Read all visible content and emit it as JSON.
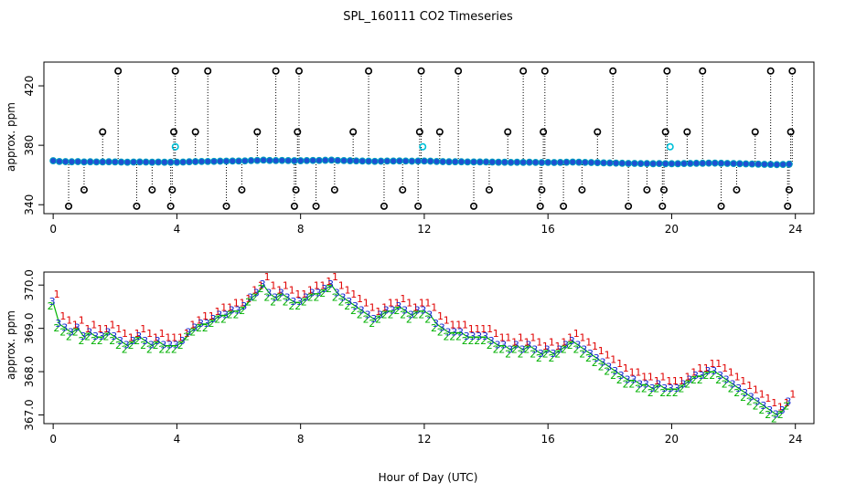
{
  "figure": {
    "title": "SPL_160111  CO2 Timeseries",
    "xlabel": "Hour of Day (UTC)"
  },
  "chart_data": [
    {
      "type": "scatter",
      "title": "SPL_160111  CO2 Timeseries",
      "xlabel": "",
      "ylabel": "approx. ppm",
      "xlim": [
        -0.3,
        24.6
      ],
      "ylim": [
        334,
        436
      ],
      "xticks": [
        0,
        4,
        8,
        12,
        16,
        20,
        24
      ],
      "yticks": [
        340,
        380,
        420
      ],
      "grid": false,
      "legend": "none",
      "colors": {
        "baseline": "#1e50d2",
        "outlier": "#000000",
        "flagged": "#00c0d8",
        "baseline_edge": "#00a0c0",
        "drop": "#000000"
      },
      "series": [
        {
          "x": [
            0.0,
            0.2,
            0.4,
            0.6,
            0.8,
            1.0,
            1.2,
            1.4,
            1.6,
            1.8,
            2.0,
            2.2,
            2.4,
            2.6,
            2.8,
            3.0,
            3.2,
            3.4,
            3.6,
            3.8,
            4.0,
            4.2,
            4.4,
            4.6,
            4.8,
            5.0,
            5.2,
            5.4,
            5.6,
            5.8,
            6.0,
            6.2,
            6.4,
            6.6,
            6.8,
            7.0,
            7.2,
            7.4,
            7.6,
            7.8,
            8.0,
            8.2,
            8.4,
            8.6,
            8.8,
            9.0,
            9.2,
            9.4,
            9.6,
            9.8,
            10.0,
            10.2,
            10.4,
            10.6,
            10.8,
            11.0,
            11.2,
            11.4,
            11.6,
            11.8,
            12.0,
            12.2,
            12.4,
            12.6,
            12.8,
            13.0,
            13.2,
            13.4,
            13.6,
            13.8,
            14.0,
            14.2,
            14.4,
            14.6,
            14.8,
            15.0,
            15.2,
            15.4,
            15.6,
            15.8,
            16.0,
            16.2,
            16.4,
            16.6,
            16.8,
            17.0,
            17.2,
            17.4,
            17.6,
            17.8,
            18.0,
            18.2,
            18.4,
            18.6,
            18.8,
            19.0,
            19.2,
            19.4,
            19.6,
            19.8,
            20.0,
            20.2,
            20.4,
            20.6,
            20.8,
            21.0,
            21.2,
            21.4,
            21.6,
            21.8,
            22.0,
            22.2,
            22.4,
            22.6,
            22.8,
            23.0,
            23.2,
            23.4,
            23.6,
            23.8
          ],
          "y": [
            369.6,
            369.1,
            369.0,
            368.9,
            369.0,
            368.8,
            368.9,
            368.8,
            368.8,
            368.9,
            368.8,
            368.7,
            368.6,
            368.7,
            368.8,
            368.7,
            368.6,
            368.7,
            368.6,
            368.6,
            368.6,
            368.7,
            368.9,
            369.0,
            369.1,
            369.1,
            369.2,
            369.3,
            369.3,
            369.4,
            369.4,
            369.5,
            369.7,
            369.8,
            370.0,
            369.8,
            369.7,
            369.8,
            369.7,
            369.6,
            369.6,
            369.7,
            369.8,
            369.8,
            369.9,
            370.0,
            369.8,
            369.7,
            369.6,
            369.5,
            369.4,
            369.3,
            369.2,
            369.3,
            369.4,
            369.4,
            369.5,
            369.4,
            369.3,
            369.4,
            369.4,
            369.3,
            369.1,
            369.0,
            368.9,
            368.9,
            368.9,
            368.8,
            368.8,
            368.8,
            368.8,
            368.7,
            368.6,
            368.6,
            368.5,
            368.6,
            368.5,
            368.6,
            368.5,
            368.4,
            368.5,
            368.4,
            368.5,
            368.6,
            368.7,
            368.6,
            368.5,
            368.4,
            368.3,
            368.2,
            368.1,
            368.0,
            367.9,
            367.8,
            367.8,
            367.7,
            367.7,
            367.6,
            367.7,
            367.6,
            367.6,
            367.6,
            367.7,
            367.8,
            367.9,
            367.9,
            368.0,
            368.0,
            367.9,
            367.8,
            367.7,
            367.6,
            367.5,
            367.4,
            367.3,
            367.2,
            367.1,
            367.0,
            367.1,
            367.3
          ]
        },
        {
          "x": [
            0.5,
            1.0,
            1.6,
            2.1,
            2.7,
            3.2,
            3.8,
            3.85,
            3.9,
            3.95,
            4.6,
            5.0,
            5.6,
            6.1,
            6.6,
            7.2,
            7.8,
            7.85,
            7.9,
            7.95,
            8.5,
            9.1,
            9.7,
            10.2,
            10.7,
            11.3,
            11.8,
            11.85,
            11.9,
            12.5,
            13.1,
            13.6,
            14.1,
            14.7,
            15.2,
            15.75,
            15.8,
            15.85,
            15.9,
            16.5,
            17.1,
            17.6,
            18.1,
            18.6,
            19.2,
            19.7,
            19.75,
            19.8,
            19.85,
            20.5,
            21.0,
            21.6,
            22.1,
            22.7,
            23.2,
            23.75,
            23.8,
            23.85,
            23.9
          ],
          "y": [
            339,
            350,
            389,
            430,
            339,
            350,
            339,
            350,
            389,
            430,
            389,
            430,
            339,
            350,
            389,
            430,
            339,
            350,
            389,
            430,
            339,
            350,
            389,
            430,
            339,
            350,
            339,
            389,
            430,
            389,
            430,
            339,
            350,
            389,
            430,
            339,
            350,
            389,
            430,
            339,
            350,
            389,
            430,
            339,
            350,
            339,
            350,
            389,
            430,
            389,
            430,
            339,
            350,
            389,
            430,
            339,
            350,
            389,
            430
          ]
        },
        {
          "x": [
            3.95,
            11.95,
            19.95
          ],
          "y": [
            379,
            379,
            379
          ]
        }
      ]
    },
    {
      "type": "scatter",
      "title": "",
      "xlabel": "",
      "ylabel": "approx. ppm",
      "xlim": [
        -0.3,
        24.6
      ],
      "ylim": [
        366.8,
        370.3
      ],
      "xticks": [
        0,
        4,
        8,
        12,
        16,
        20,
        24
      ],
      "yticks": [
        367.0,
        368.0,
        369.0,
        370.0
      ],
      "grid": false,
      "legend": "none",
      "markers": [
        "1",
        "2",
        "3"
      ],
      "colors": {
        "1": "#e00000",
        "2": "#00b000",
        "3": "#1428d2",
        "line": "#00b400"
      }
    }
  ]
}
